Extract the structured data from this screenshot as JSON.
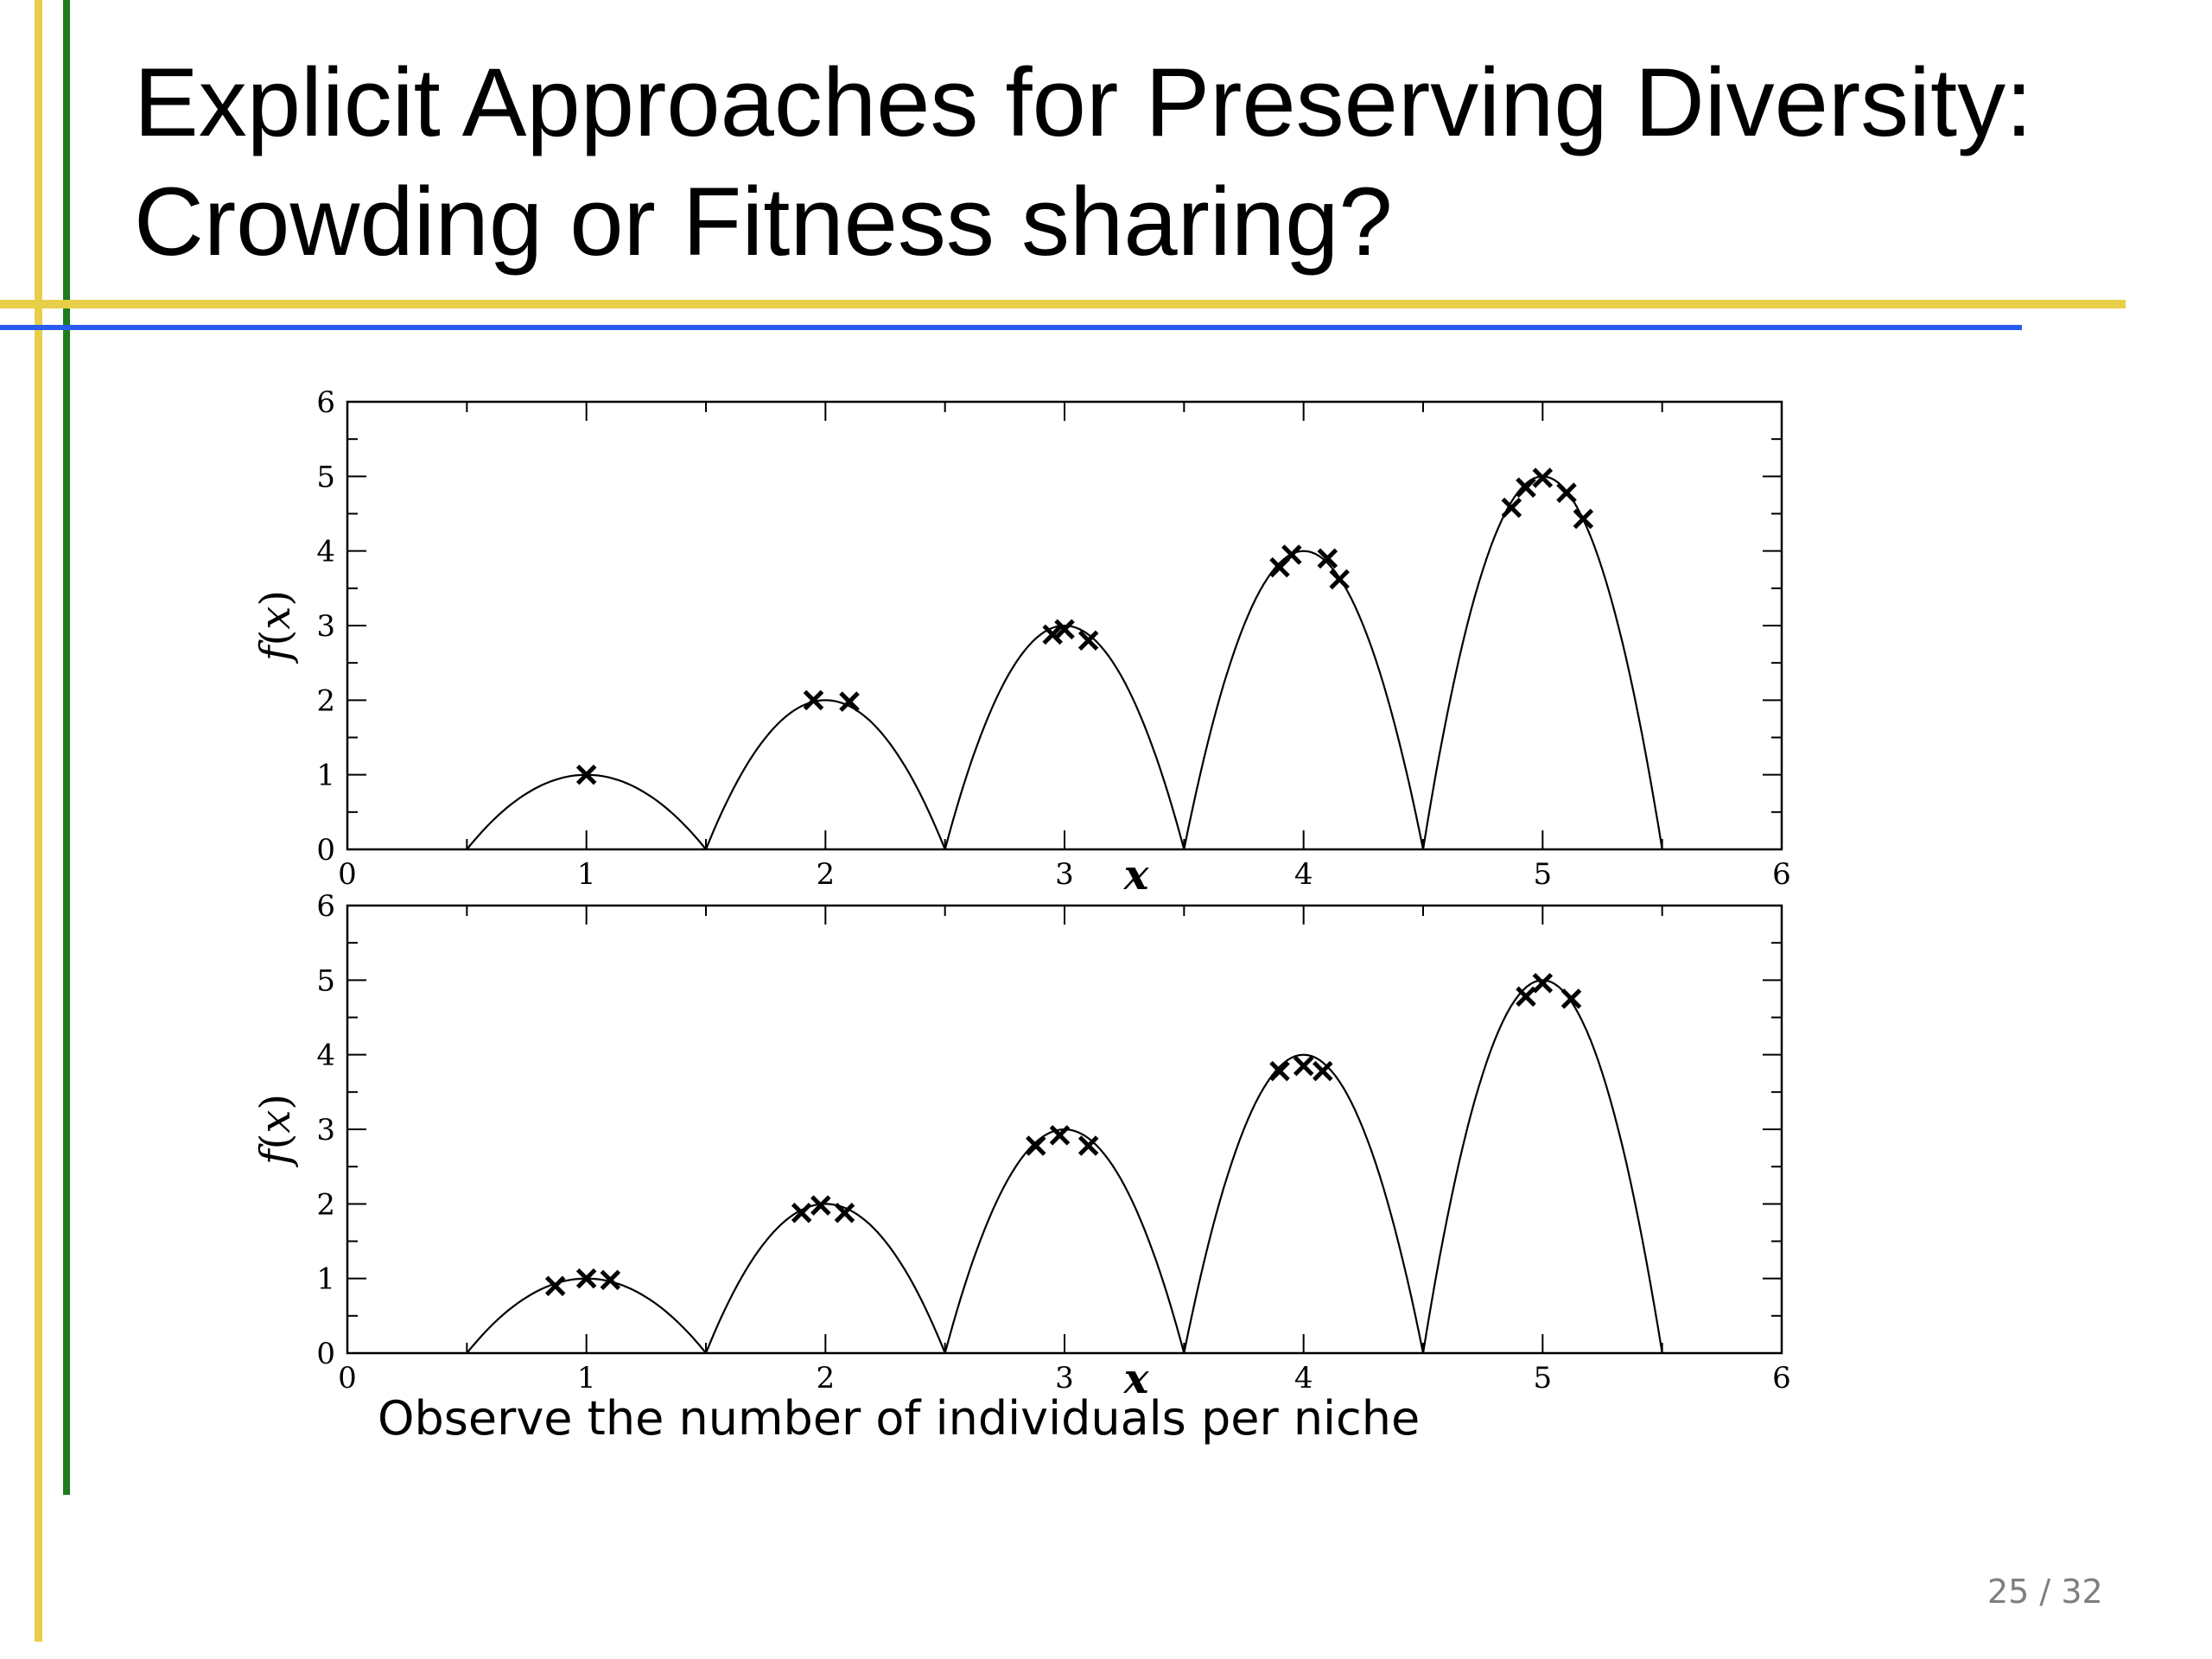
{
  "slide": {
    "title_line1": "Explicit Approaches for Preserving Diversity:",
    "title_line2": "Crowding or Fitness sharing?",
    "caption": "Observe the number of individuals per niche",
    "page_number": "25 / 32",
    "colors": {
      "yellow": "#e8cf4a",
      "green": "#1e7b1e",
      "blue": "#2a5bf0",
      "text": "#000000",
      "page_number": "#7f7f7f"
    }
  },
  "chart_data": [
    {
      "type": "scatter",
      "xlabel": "x",
      "ylabel": "f(x)",
      "xlim": [
        0,
        6
      ],
      "ylim": [
        0,
        6
      ],
      "x_ticks": [
        "0",
        "1",
        "2",
        "3",
        "4",
        "5",
        "6"
      ],
      "y_ticks": [
        "0",
        "1",
        "2",
        "3",
        "4",
        "5",
        "6"
      ],
      "curve": {
        "peaks": [
          1,
          2,
          3,
          4,
          5
        ],
        "heights": [
          1,
          2,
          3,
          4,
          5
        ],
        "half_width": 0.5
      },
      "marker": "x",
      "points": [
        {
          "x": 1.0,
          "y": 1.0
        },
        {
          "x": 1.95,
          "y": 2.0
        },
        {
          "x": 2.1,
          "y": 1.98
        },
        {
          "x": 2.95,
          "y": 2.88
        },
        {
          "x": 3.0,
          "y": 2.95
        },
        {
          "x": 3.1,
          "y": 2.8
        },
        {
          "x": 3.9,
          "y": 3.78
        },
        {
          "x": 3.95,
          "y": 3.95
        },
        {
          "x": 4.1,
          "y": 3.9
        },
        {
          "x": 4.15,
          "y": 3.62
        },
        {
          "x": 4.87,
          "y": 4.58
        },
        {
          "x": 4.93,
          "y": 4.85
        },
        {
          "x": 5.0,
          "y": 4.98
        },
        {
          "x": 5.1,
          "y": 4.78
        },
        {
          "x": 5.17,
          "y": 4.43
        }
      ]
    },
    {
      "type": "scatter",
      "xlabel": "x",
      "ylabel": "f(x)",
      "xlim": [
        0,
        6
      ],
      "ylim": [
        0,
        6
      ],
      "x_ticks": [
        "0",
        "1",
        "2",
        "3",
        "4",
        "5",
        "6"
      ],
      "y_ticks": [
        "0",
        "1",
        "2",
        "3",
        "4",
        "5",
        "6"
      ],
      "curve": {
        "peaks": [
          1,
          2,
          3,
          4,
          5
        ],
        "heights": [
          1,
          2,
          3,
          4,
          5
        ],
        "half_width": 0.5
      },
      "marker": "x",
      "points": [
        {
          "x": 0.87,
          "y": 0.9
        },
        {
          "x": 1.0,
          "y": 1.0
        },
        {
          "x": 1.1,
          "y": 0.98
        },
        {
          "x": 1.9,
          "y": 1.88
        },
        {
          "x": 1.98,
          "y": 1.98
        },
        {
          "x": 2.08,
          "y": 1.88
        },
        {
          "x": 2.88,
          "y": 2.78
        },
        {
          "x": 2.98,
          "y": 2.92
        },
        {
          "x": 3.1,
          "y": 2.78
        },
        {
          "x": 3.9,
          "y": 3.78
        },
        {
          "x": 4.0,
          "y": 3.85
        },
        {
          "x": 4.08,
          "y": 3.78
        },
        {
          "x": 4.93,
          "y": 4.78
        },
        {
          "x": 5.0,
          "y": 4.96
        },
        {
          "x": 5.12,
          "y": 4.75
        }
      ]
    }
  ]
}
